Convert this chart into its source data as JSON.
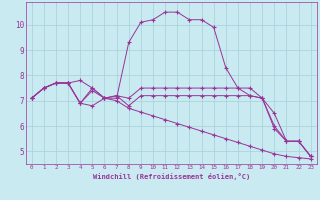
{
  "xlabel": "Windchill (Refroidissement éolien,°C)",
  "bg_color": "#c8eaf0",
  "grid_color": "#aad4dc",
  "line_color": "#993399",
  "marker": "+",
  "xlim": [
    -0.5,
    23.5
  ],
  "ylim": [
    4.5,
    10.9
  ],
  "xticks": [
    0,
    1,
    2,
    3,
    4,
    5,
    6,
    7,
    8,
    9,
    10,
    11,
    12,
    13,
    14,
    15,
    16,
    17,
    18,
    19,
    20,
    21,
    22,
    23
  ],
  "yticks": [
    5,
    6,
    7,
    8,
    9,
    10
  ],
  "series": [
    [
      7.1,
      7.5,
      7.7,
      7.7,
      6.9,
      7.5,
      7.1,
      7.1,
      9.3,
      10.1,
      10.2,
      10.5,
      10.5,
      10.2,
      10.2,
      9.9,
      8.3,
      7.5,
      7.2,
      7.1,
      5.9,
      5.4,
      5.4,
      4.8
    ],
    [
      7.1,
      7.5,
      7.7,
      7.7,
      6.9,
      6.8,
      7.1,
      7.2,
      6.8,
      7.2,
      7.2,
      7.2,
      7.2,
      7.2,
      7.2,
      7.2,
      7.2,
      7.2,
      7.2,
      7.1,
      6.5,
      5.4,
      5.4,
      4.8
    ],
    [
      7.1,
      7.5,
      7.7,
      7.7,
      6.9,
      7.4,
      7.1,
      7.0,
      6.7,
      6.55,
      6.4,
      6.25,
      6.1,
      5.95,
      5.8,
      5.65,
      5.5,
      5.35,
      5.2,
      5.05,
      4.9,
      4.8,
      4.75,
      4.7
    ],
    [
      7.1,
      7.5,
      7.7,
      7.7,
      7.8,
      7.5,
      7.1,
      7.2,
      7.1,
      7.5,
      7.5,
      7.5,
      7.5,
      7.5,
      7.5,
      7.5,
      7.5,
      7.5,
      7.5,
      7.1,
      6.0,
      5.4,
      5.4,
      4.8
    ]
  ]
}
